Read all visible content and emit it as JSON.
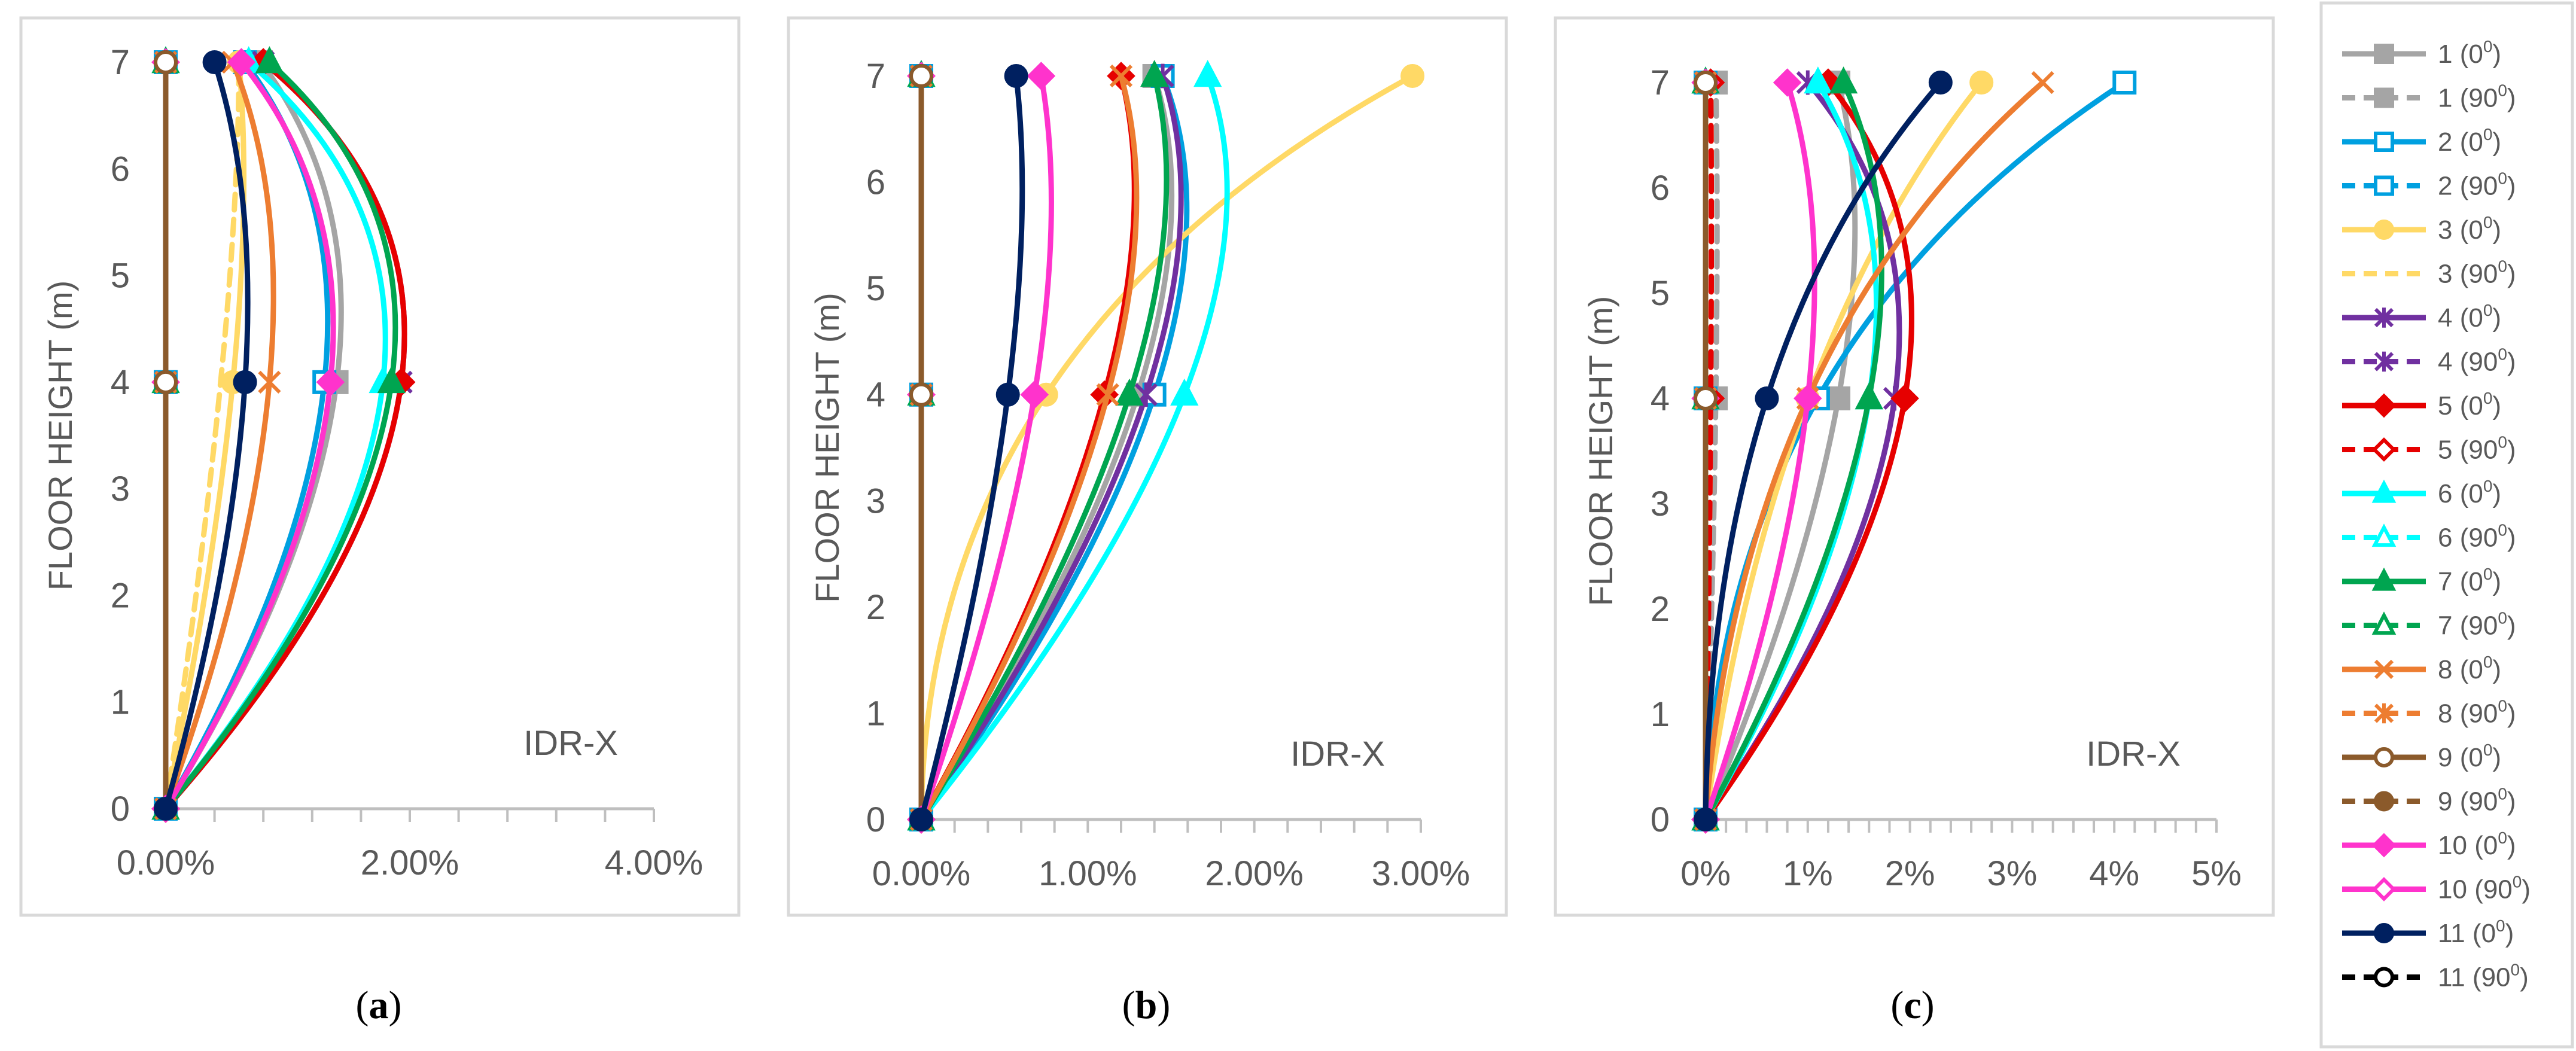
{
  "figure": {
    "captions": [
      {
        "open": "(",
        "letter": "a",
        "close": ")"
      },
      {
        "open": "(",
        "letter": "b",
        "close": ")"
      },
      {
        "open": "(",
        "letter": "c",
        "close": ")"
      }
    ]
  },
  "chart_data": [
    {
      "type": "line",
      "panel": "a",
      "ylabel": "FLOOR HEIGHT (m)",
      "annotation": "IDR-X",
      "ylim": [
        0,
        7
      ],
      "yticks": [
        "0",
        "1",
        "2",
        "3",
        "4",
        "5",
        "6",
        "7"
      ],
      "xlim": [
        0,
        4
      ],
      "xticks": [
        {
          "v": 0,
          "label": "0.00%"
        },
        {
          "v": 2,
          "label": "2.00%"
        },
        {
          "v": 4,
          "label": "4.00%"
        }
      ],
      "minor_tick_step": 0.4,
      "series": [
        {
          "name": "1 (0⁰)",
          "x": [
            0,
            1.4,
            0.78
          ]
        },
        {
          "name": "1 (90⁰)",
          "x": [
            0,
            0.0,
            0.0
          ]
        },
        {
          "name": "2 (0⁰)",
          "x": [
            0,
            1.3,
            0.65
          ]
        },
        {
          "name": "2 (90⁰)",
          "x": [
            0,
            0.0,
            0.0
          ]
        },
        {
          "name": "3 (0⁰)",
          "x": [
            0,
            0.55,
            0.6
          ]
        },
        {
          "name": "3 (90⁰)",
          "x": [
            0,
            0.45,
            0.6
          ]
        },
        {
          "name": "4 (0⁰)",
          "x": [
            0,
            1.93,
            0.8
          ]
        },
        {
          "name": "4 (90⁰)",
          "x": [
            0,
            0.0,
            0.0
          ]
        },
        {
          "name": "5 (0⁰)",
          "x": [
            0,
            1.93,
            0.8
          ]
        },
        {
          "name": "5 (90⁰)",
          "x": [
            0,
            0.0,
            0.0
          ]
        },
        {
          "name": "6 (0⁰)",
          "x": [
            0,
            1.78,
            0.68
          ]
        },
        {
          "name": "6 (90⁰)",
          "x": [
            0,
            0.0,
            0.0
          ]
        },
        {
          "name": "7 (0⁰)",
          "x": [
            0,
            1.85,
            0.85
          ]
        },
        {
          "name": "7 (90⁰)",
          "x": [
            0,
            0.0,
            0.0
          ]
        },
        {
          "name": "8 (0⁰)",
          "x": [
            0,
            0.85,
            0.55
          ]
        },
        {
          "name": "8 (90⁰)",
          "x": [
            0,
            0.0,
            0.0
          ]
        },
        {
          "name": "9 (0⁰)",
          "x": [
            0,
            0.0,
            0.0
          ]
        },
        {
          "name": "9 (90⁰)",
          "x": [
            0,
            0.0,
            0.0
          ]
        },
        {
          "name": "10 (0⁰)",
          "x": [
            0,
            1.35,
            0.62
          ]
        },
        {
          "name": "10 (90⁰)",
          "x": [
            0,
            0.0,
            0.0
          ]
        },
        {
          "name": "11 (0⁰)",
          "x": [
            0,
            0.65,
            0.4
          ]
        },
        {
          "name": "11 (90⁰)",
          "x": [
            0,
            0.0,
            0.0
          ]
        }
      ]
    },
    {
      "type": "line",
      "panel": "b",
      "ylabel": "FLOOR HEIGHT (m)",
      "annotation": "IDR-X",
      "ylim": [
        0,
        7
      ],
      "yticks": [
        "0",
        "1",
        "2",
        "3",
        "4",
        "5",
        "6",
        "7"
      ],
      "xlim": [
        0,
        3
      ],
      "xticks": [
        {
          "v": 0,
          "label": "0.00%"
        },
        {
          "v": 1,
          "label": "1.00%"
        },
        {
          "v": 2,
          "label": "2.00%"
        },
        {
          "v": 3,
          "label": "3.00%"
        }
      ],
      "minor_tick_step": 0.2,
      "series": [
        {
          "name": "1 (0⁰)",
          "x": [
            0,
            1.3,
            1.4
          ]
        },
        {
          "name": "1 (90⁰)",
          "x": [
            0,
            0.0,
            0.0
          ]
        },
        {
          "name": "2 (0⁰)",
          "x": [
            0,
            1.4,
            1.45
          ]
        },
        {
          "name": "2 (90⁰)",
          "x": [
            0,
            0.0,
            0.0
          ]
        },
        {
          "name": "3 (0⁰)",
          "x": [
            0,
            0.75,
            2.95
          ]
        },
        {
          "name": "3 (90⁰)",
          "x": [
            0,
            0.0,
            0.0
          ]
        },
        {
          "name": "4 (0⁰)",
          "x": [
            0,
            1.35,
            1.45
          ]
        },
        {
          "name": "4 (90⁰)",
          "x": [
            0,
            0.0,
            0.0
          ]
        },
        {
          "name": "5 (0⁰)",
          "x": [
            0,
            1.1,
            1.2
          ]
        },
        {
          "name": "5 (90⁰)",
          "x": [
            0,
            0.0,
            0.0
          ]
        },
        {
          "name": "6 (0⁰)",
          "x": [
            0,
            1.58,
            1.72
          ]
        },
        {
          "name": "6 (90⁰)",
          "x": [
            0,
            0.0,
            0.0
          ]
        },
        {
          "name": "7 (0⁰)",
          "x": [
            0,
            1.25,
            1.4
          ]
        },
        {
          "name": "7 (90⁰)",
          "x": [
            0,
            0.0,
            0.0
          ]
        },
        {
          "name": "8 (0⁰)",
          "x": [
            0,
            1.12,
            1.2
          ]
        },
        {
          "name": "8 (90⁰)",
          "x": [
            0,
            0.0,
            0.0
          ]
        },
        {
          "name": "9 (0⁰)",
          "x": [
            0,
            0.0,
            0.0
          ]
        },
        {
          "name": "9 (90⁰)",
          "x": [
            0,
            0.0,
            0.0
          ]
        },
        {
          "name": "10 (0⁰)",
          "x": [
            0,
            0.68,
            0.72
          ]
        },
        {
          "name": "10 (90⁰)",
          "x": [
            0,
            0.0,
            0.0
          ]
        },
        {
          "name": "11 (0⁰)",
          "x": [
            0,
            0.52,
            0.57
          ]
        },
        {
          "name": "11 (90⁰)",
          "x": [
            0,
            0.0,
            0.0
          ]
        }
      ]
    },
    {
      "type": "line",
      "panel": "c",
      "ylabel": "FLOOR HEIGHT (m)",
      "annotation": "IDR-X",
      "ylim": [
        0,
        7
      ],
      "yticks": [
        "0",
        "1",
        "2",
        "3",
        "4",
        "5",
        "6",
        "7"
      ],
      "xlim": [
        0,
        5
      ],
      "xticks": [
        {
          "v": 0,
          "label": "0%"
        },
        {
          "v": 1,
          "label": "1%"
        },
        {
          "v": 2,
          "label": "2%"
        },
        {
          "v": 3,
          "label": "3%"
        },
        {
          "v": 4,
          "label": "4%"
        },
        {
          "v": 5,
          "label": "5%"
        }
      ],
      "minor_tick_step": 0.2,
      "series": [
        {
          "name": "1 (0⁰)",
          "x": [
            0,
            1.3,
            1.3
          ]
        },
        {
          "name": "1 (90⁰)",
          "x": [
            0,
            0.1,
            0.1
          ]
        },
        {
          "name": "2 (0⁰)",
          "x": [
            0,
            1.1,
            4.1
          ]
        },
        {
          "name": "2 (90⁰)",
          "x": [
            0,
            0.0,
            0.0
          ]
        },
        {
          "name": "3 (0⁰)",
          "x": [
            0,
            1.0,
            2.7
          ]
        },
        {
          "name": "3 (90⁰)",
          "x": [
            0,
            0.05,
            0.05
          ]
        },
        {
          "name": "4 (0⁰)",
          "x": [
            0,
            1.85,
            1.0
          ]
        },
        {
          "name": "4 (90⁰)",
          "x": [
            0,
            0.0,
            0.0
          ]
        },
        {
          "name": "5 (0⁰)",
          "x": [
            0,
            1.95,
            1.2
          ]
        },
        {
          "name": "5 (90⁰)",
          "x": [
            0,
            0.05,
            0.05
          ]
        },
        {
          "name": "6 (0⁰)",
          "x": [
            0,
            1.6,
            1.1
          ]
        },
        {
          "name": "6 (90⁰)",
          "x": [
            0,
            0.0,
            0.0
          ]
        },
        {
          "name": "7 (0⁰)",
          "x": [
            0,
            1.6,
            1.35
          ]
        },
        {
          "name": "7 (90⁰)",
          "x": [
            0,
            0.0,
            0.0
          ]
        },
        {
          "name": "8 (0⁰)",
          "x": [
            0,
            1.0,
            3.3
          ]
        },
        {
          "name": "8 (90⁰)",
          "x": [
            0,
            0.0,
            0.0
          ]
        },
        {
          "name": "9 (0⁰)",
          "x": [
            0,
            0.0,
            0.0
          ]
        },
        {
          "name": "9 (90⁰)",
          "x": [
            0,
            0.0,
            0.0
          ]
        },
        {
          "name": "10 (0⁰)",
          "x": [
            0,
            1.0,
            0.8
          ]
        },
        {
          "name": "10 (90⁰)",
          "x": [
            0,
            0.0,
            0.0
          ]
        },
        {
          "name": "11 (0⁰)",
          "x": [
            0,
            0.6,
            2.3
          ]
        },
        {
          "name": "11 (90⁰)",
          "x": [
            0,
            0.0,
            0.0
          ]
        }
      ]
    }
  ],
  "legend": {
    "items": [
      {
        "num": "1",
        "base": "(0",
        "close": ")",
        "sup": "0",
        "color": "#a5a5a5",
        "dashed": false,
        "marker": "square-filled"
      },
      {
        "num": "1",
        "base": "(90",
        "close": ")",
        "sup": "0",
        "color": "#a5a5a5",
        "dashed": true,
        "marker": "square-filled"
      },
      {
        "num": "2",
        "base": "(0",
        "close": ")",
        "sup": "0",
        "color": "#00a0e0",
        "dashed": false,
        "marker": "square-open"
      },
      {
        "num": "2",
        "base": "(90",
        "close": ")",
        "sup": "0",
        "color": "#00a0e0",
        "dashed": true,
        "marker": "square-open"
      },
      {
        "num": "3",
        "base": "(0",
        "close": ")",
        "sup": "0",
        "color": "#ffd966",
        "dashed": false,
        "marker": "circle-filled"
      },
      {
        "num": "3",
        "base": "(90",
        "close": ")",
        "sup": "0",
        "color": "#ffd966",
        "dashed": true,
        "marker": "none"
      },
      {
        "num": "4",
        "base": "(0",
        "close": ")",
        "sup": "0",
        "color": "#7030a0",
        "dashed": false,
        "marker": "star"
      },
      {
        "num": "4",
        "base": "(90",
        "close": ")",
        "sup": "0",
        "color": "#7030a0",
        "dashed": true,
        "marker": "star"
      },
      {
        "num": "5",
        "base": "(0",
        "close": ")",
        "sup": "0",
        "color": "#e60000",
        "dashed": false,
        "marker": "diamond-filled"
      },
      {
        "num": "5",
        "base": "(90",
        "close": ")",
        "sup": "0",
        "color": "#e60000",
        "dashed": true,
        "marker": "diamond-open"
      },
      {
        "num": "6",
        "base": "(0",
        "close": ")",
        "sup": "0",
        "color": "#00ffff",
        "dashed": false,
        "marker": "triangle-filled"
      },
      {
        "num": "6",
        "base": "(90",
        "close": ")",
        "sup": "0",
        "color": "#00ffff",
        "dashed": true,
        "marker": "triangle-open"
      },
      {
        "num": "7",
        "base": "(0",
        "close": ")",
        "sup": "0",
        "color": "#00a550",
        "dashed": false,
        "marker": "triangle-filled"
      },
      {
        "num": "7",
        "base": "(90",
        "close": ")",
        "sup": "0",
        "color": "#00a550",
        "dashed": true,
        "marker": "triangle-open"
      },
      {
        "num": "8",
        "base": "(0",
        "close": ")",
        "sup": "0",
        "color": "#ed7d31",
        "dashed": false,
        "marker": "x"
      },
      {
        "num": "8",
        "base": "(90",
        "close": ")",
        "sup": "0",
        "color": "#ed7d31",
        "dashed": true,
        "marker": "star"
      },
      {
        "num": "9",
        "base": "(0",
        "close": ")",
        "sup": "0",
        "color": "#8b5a2b",
        "dashed": false,
        "marker": "circle-open"
      },
      {
        "num": "9",
        "base": "(90",
        "close": ")",
        "sup": "0",
        "color": "#8b5a2b",
        "dashed": true,
        "marker": "circle-filled"
      },
      {
        "num": "10",
        "base": "(0",
        "close": ")",
        "sup": "0",
        "color": "#ff33cc",
        "dashed": false,
        "marker": "diamond-filled"
      },
      {
        "num": "10",
        "base": "(90",
        "close": ")",
        "sup": "0",
        "color": "#ff33cc",
        "dashed": false,
        "marker": "diamond-open"
      },
      {
        "num": "11",
        "base": "(0",
        "close": ")",
        "sup": "0",
        "color": "#002060",
        "dashed": false,
        "marker": "circle-filled"
      },
      {
        "num": "11",
        "base": "(90",
        "close": ")",
        "sup": "0",
        "color": "#000000",
        "dashed": true,
        "marker": "circle-open"
      }
    ]
  }
}
